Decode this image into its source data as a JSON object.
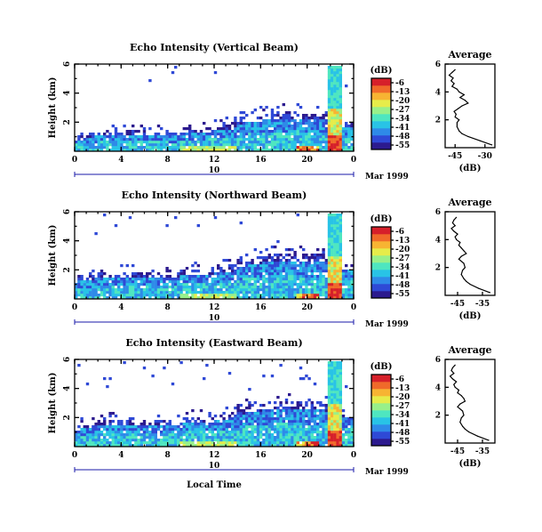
{
  "colors": {
    "colorbar": [
      "#2c1a8e",
      "#2f49d6",
      "#2f8ae8",
      "#29c3e6",
      "#4fe6c0",
      "#98f08a",
      "#e6ec4a",
      "#f7b433",
      "#f06a2a",
      "#d6202a"
    ],
    "profile_line": "#000000",
    "date_line": "#1a1aa8"
  },
  "shared": {
    "x_label": "Local Time",
    "day_label": "10",
    "month_label": "Mar 1999",
    "colorbar_unit": "(dB)",
    "colorbar_ticks": [
      "-6",
      "-13",
      "-20",
      "-27",
      "-34",
      "-41",
      "-48",
      "-55"
    ],
    "avg_title": "Average",
    "avg_xlabel": "(dB)"
  },
  "chart_data": [
    {
      "type": "heatmap",
      "title": "Echo Intensity (Vertical Beam)",
      "xlabel": "Local Time",
      "ylabel": "Height (km)",
      "x_ticks": [
        "0",
        "4",
        "8",
        "12",
        "16",
        "20",
        "0"
      ],
      "y_ticks": [
        "6",
        "4",
        "2"
      ],
      "xlim": [
        0,
        24
      ],
      "ylim": [
        0,
        6
      ],
      "zlim": [
        -55,
        -6
      ],
      "profile": {
        "title": "Average",
        "x_ticks": [
          "-45",
          "-30"
        ],
        "y_ticks": [
          "6",
          "4",
          "2"
        ],
        "xlabel": "(dB)",
        "xlim": [
          -50,
          -25
        ],
        "heights": [
          0.2,
          0.5,
          0.8,
          1.0,
          1.2,
          1.5,
          1.8,
          2.0,
          2.2,
          2.4,
          2.6,
          2.8,
          3.0,
          3.2,
          3.4,
          3.6,
          3.8,
          4.0,
          4.2,
          4.4,
          4.6,
          4.8,
          5.0,
          5.2,
          5.4,
          5.6
        ],
        "db": [
          -26.5,
          -32.5,
          -38.5,
          -41.5,
          -43.0,
          -44.0,
          -44.0,
          -43.0,
          -45.0,
          -44.5,
          -45.5,
          -43.5,
          -41.5,
          -38.5,
          -40.0,
          -42.5,
          -40.5,
          -43.0,
          -44.0,
          -46.5,
          -45.5,
          -47.0,
          -46.0,
          -48.0,
          -46.5,
          -45.0
        ]
      }
    },
    {
      "type": "heatmap",
      "title": "Echo Intensity (Northward Beam)",
      "xlabel": "Local Time",
      "ylabel": "Height (km)",
      "x_ticks": [
        "0",
        "4",
        "8",
        "12",
        "16",
        "20",
        "0"
      ],
      "y_ticks": [
        "6",
        "4",
        "2"
      ],
      "xlim": [
        0,
        24
      ],
      "ylim": [
        0,
        6
      ],
      "zlim": [
        -55,
        -6
      ],
      "profile": {
        "title": "Average",
        "x_ticks": [
          "-45",
          "-35"
        ],
        "y_ticks": [
          "6",
          "4",
          "2"
        ],
        "xlabel": "(dB)",
        "xlim": [
          -50,
          -30
        ],
        "heights": [
          0.2,
          0.5,
          0.8,
          1.0,
          1.2,
          1.5,
          1.8,
          2.0,
          2.3,
          2.6,
          2.8,
          3.0,
          3.2,
          3.4,
          3.6,
          3.8,
          4.0,
          4.2,
          4.4,
          4.6,
          4.8,
          5.0,
          5.2,
          5.4,
          5.6
        ],
        "db": [
          -32.0,
          -36.5,
          -40.0,
          -41.5,
          -42.5,
          -43.5,
          -43.0,
          -42.0,
          -42.5,
          -44.5,
          -43.5,
          -41.5,
          -42.5,
          -43.5,
          -44.5,
          -44.0,
          -45.5,
          -46.0,
          -45.0,
          -46.5,
          -47.5,
          -46.0,
          -47.0,
          -46.5,
          -45.5
        ]
      }
    },
    {
      "type": "heatmap",
      "title": "Echo Intensity (Eastward Beam)",
      "xlabel": "Local Time",
      "ylabel": "Height (km)",
      "x_ticks": [
        "0",
        "4",
        "8",
        "12",
        "16",
        "20",
        "0"
      ],
      "y_ticks": [
        "6",
        "4",
        "2"
      ],
      "xlim": [
        0,
        24
      ],
      "ylim": [
        0,
        6
      ],
      "zlim": [
        -55,
        -6
      ],
      "profile": {
        "title": "Average",
        "x_ticks": [
          "-45",
          "-35"
        ],
        "y_ticks": [
          "6",
          "4",
          "2"
        ],
        "xlabel": "(dB)",
        "xlim": [
          -50,
          -30
        ],
        "heights": [
          0.2,
          0.5,
          0.8,
          1.0,
          1.2,
          1.5,
          1.8,
          2.0,
          2.3,
          2.6,
          2.8,
          3.0,
          3.2,
          3.4,
          3.6,
          3.8,
          4.0,
          4.2,
          4.4,
          4.6,
          4.8,
          5.0,
          5.2,
          5.4,
          5.6
        ],
        "db": [
          -32.5,
          -37.0,
          -40.5,
          -42.0,
          -43.0,
          -44.0,
          -43.5,
          -42.5,
          -43.0,
          -45.0,
          -44.0,
          -42.0,
          -42.5,
          -43.5,
          -45.0,
          -44.5,
          -46.0,
          -46.5,
          -45.5,
          -47.0,
          -48.0,
          -46.5,
          -47.5,
          -47.0,
          -46.0
        ]
      }
    }
  ]
}
